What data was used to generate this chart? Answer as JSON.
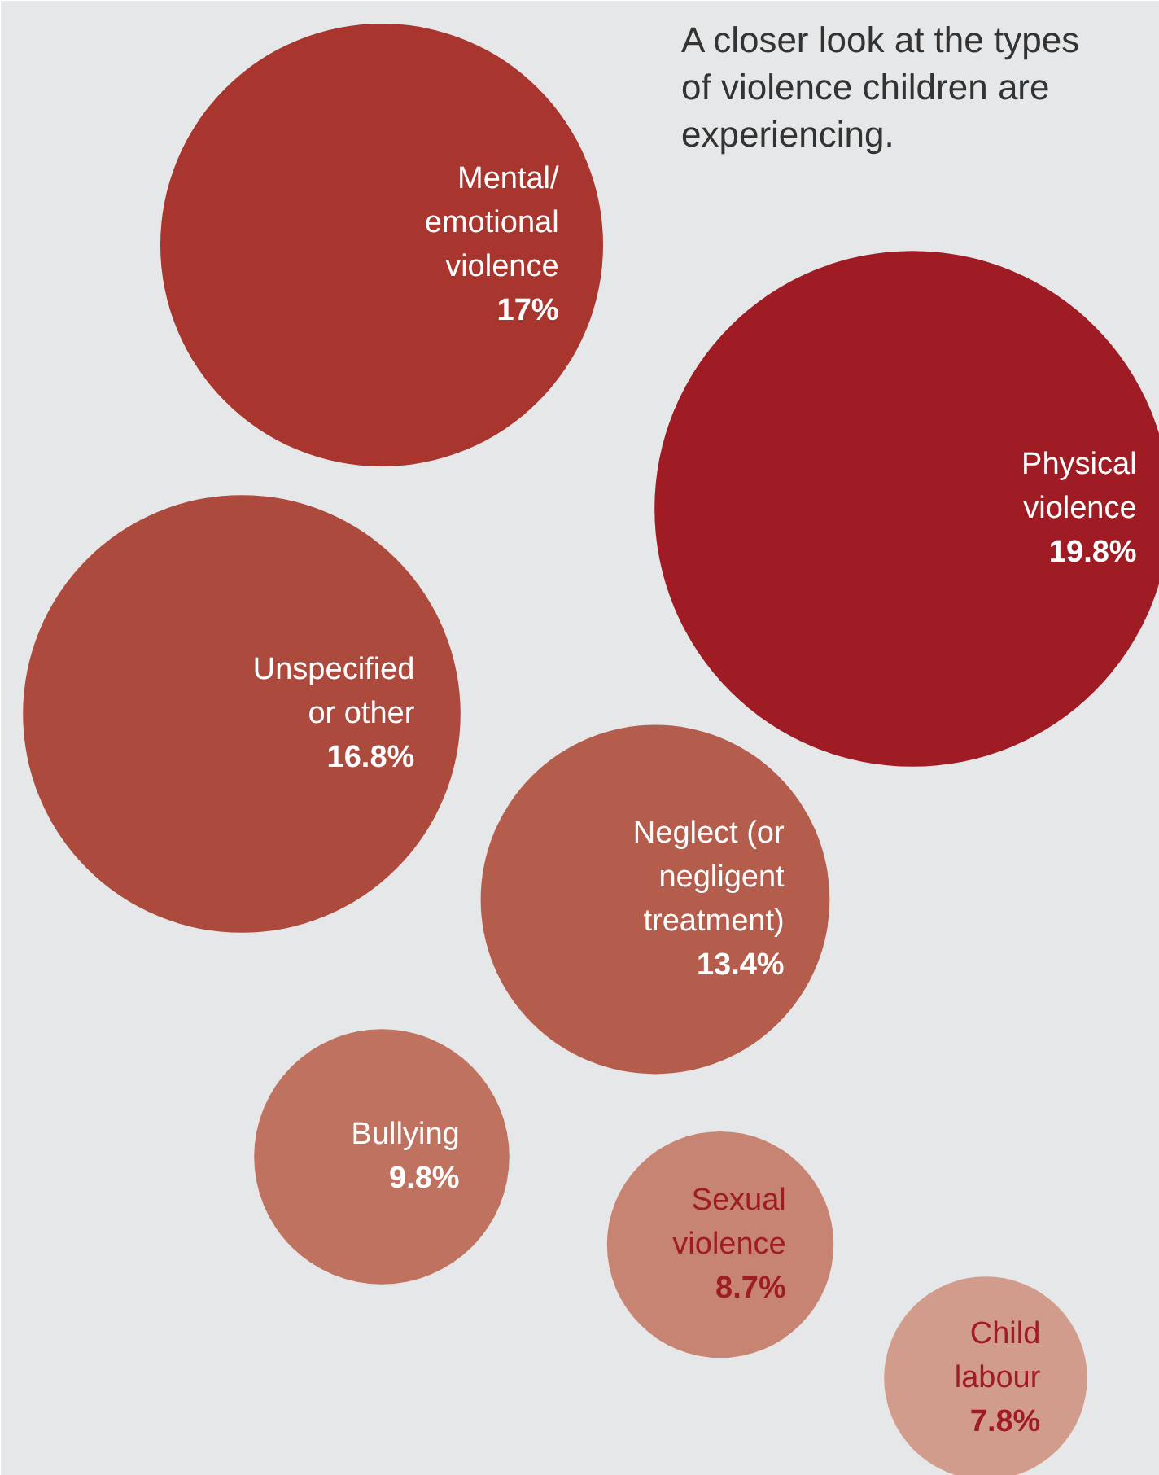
{
  "chart_data": {
    "type": "other",
    "title": "A closer look at the types of violence children are experiencing.",
    "categories": [
      "Mental/\nemotional\nviolence",
      "Physical\nviolence",
      "Unspecified\nor other",
      "Neglect (or\nnegligent\ntreatment)",
      "Bullying",
      "Sexual\nviolence",
      "Child\nlabour"
    ],
    "values": [
      17,
      19.8,
      16.8,
      13.4,
      9.8,
      8.7,
      7.8
    ],
    "value_labels": [
      "17%",
      "19.8%",
      "16.8%",
      "13.4%",
      "9.8%",
      "8.7%",
      "7.8%"
    ],
    "colors": [
      "#a8362e",
      "#a01c24",
      "#ad4a3e",
      "#b55d4c",
      "#bf7260",
      "#c88472",
      "#d19c8b"
    ]
  }
}
